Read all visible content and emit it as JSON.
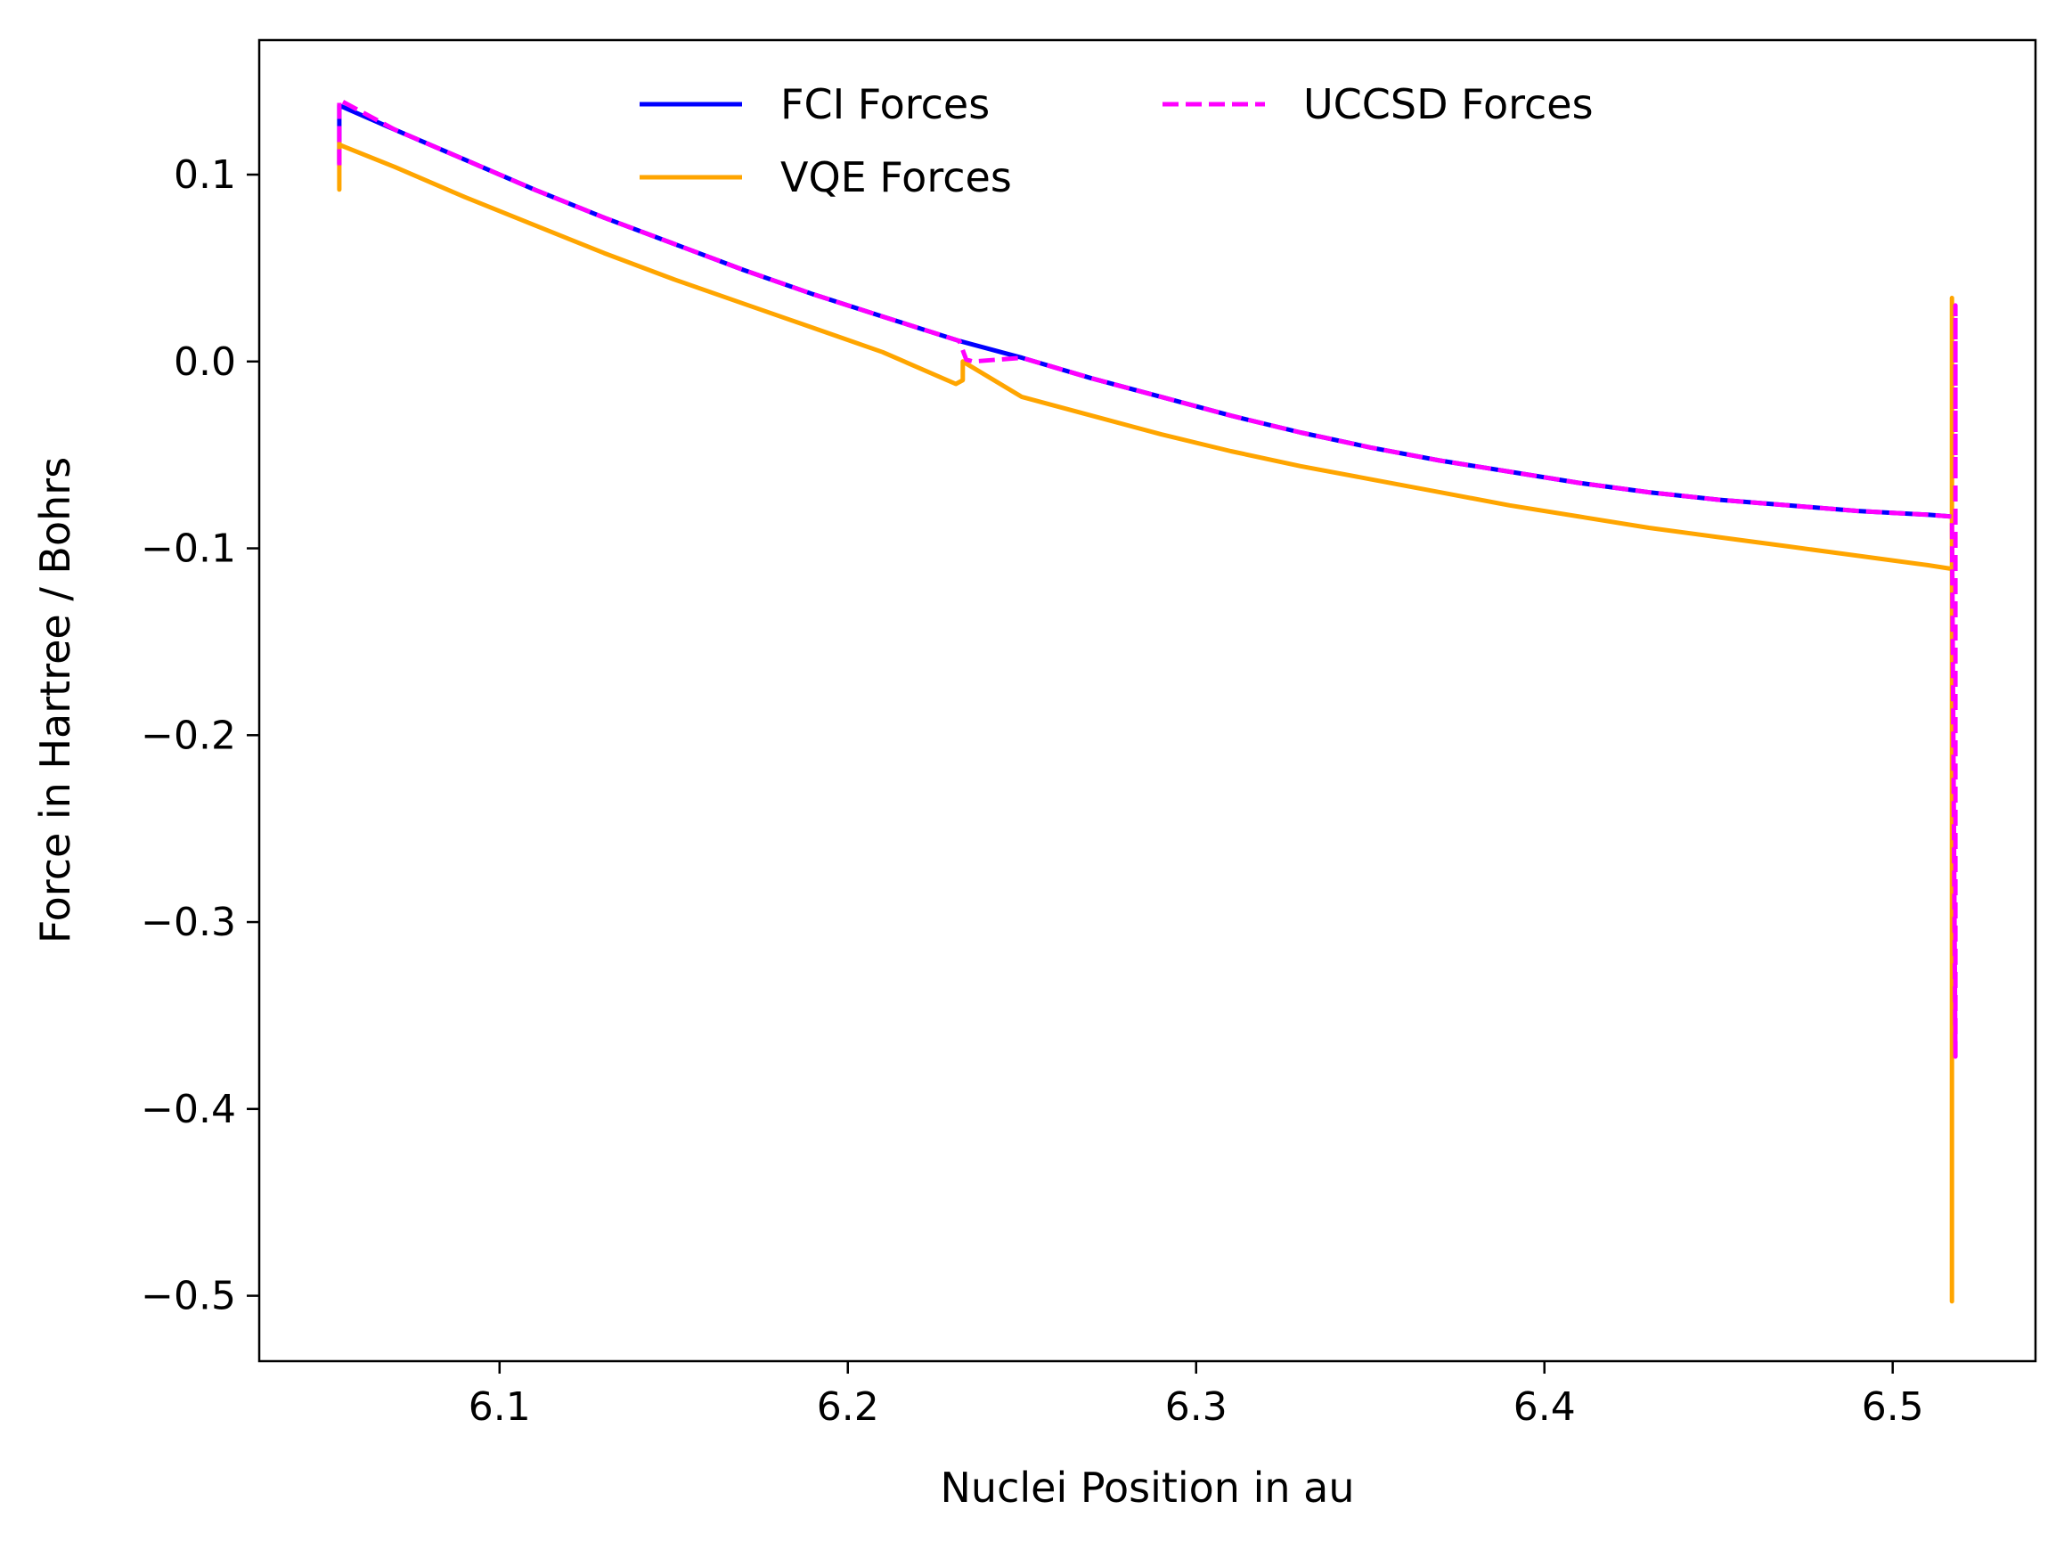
{
  "chart_data": {
    "type": "line",
    "title": "",
    "xlabel": "Nuclei Position in au",
    "ylabel": "Force in Hartree / Bohrs",
    "xlim": [
      6.031,
      6.541
    ],
    "ylim": [
      -0.535,
      0.172
    ],
    "xticks": [
      6.1,
      6.2,
      6.3,
      6.4,
      6.5
    ],
    "xtick_labels": [
      "6.1",
      "6.2",
      "6.3",
      "6.4",
      "6.5"
    ],
    "yticks": [
      0.1,
      0.0,
      -0.1,
      -0.2,
      -0.3,
      -0.4,
      -0.5
    ],
    "ytick_labels": [
      "0.1",
      "0.0",
      "−0.1",
      "−0.2",
      "−0.3",
      "−0.4",
      "−0.5"
    ],
    "grid": false,
    "legend_position": "top-center",
    "series": [
      {
        "name": "FCI Forces",
        "color": "#0000ff",
        "style": "solid",
        "x": [
          6.054,
          6.054,
          6.07,
          6.09,
          6.11,
          6.13,
          6.15,
          6.17,
          6.19,
          6.21,
          6.232,
          6.25,
          6.27,
          6.29,
          6.31,
          6.33,
          6.35,
          6.37,
          6.39,
          6.41,
          6.43,
          6.45,
          6.47,
          6.49,
          6.51,
          6.517
        ],
        "y": [
          0.106,
          0.137,
          0.124,
          0.108,
          0.092,
          0.077,
          0.063,
          0.049,
          0.036,
          0.024,
          0.011,
          0.002,
          -0.009,
          -0.019,
          -0.029,
          -0.038,
          -0.046,
          -0.053,
          -0.059,
          -0.065,
          -0.07,
          -0.074,
          -0.077,
          -0.08,
          -0.082,
          -0.083
        ]
      },
      {
        "name": "VQE Forces",
        "color": "#ffa500",
        "style": "solid",
        "x": [
          6.054,
          6.054,
          6.054,
          6.07,
          6.09,
          6.11,
          6.13,
          6.15,
          6.17,
          6.19,
          6.21,
          6.231,
          6.233,
          6.233,
          6.25,
          6.27,
          6.29,
          6.31,
          6.33,
          6.35,
          6.37,
          6.39,
          6.41,
          6.43,
          6.45,
          6.47,
          6.49,
          6.51,
          6.517,
          6.517,
          6.517,
          6.517,
          6.517
        ],
        "y": [
          0.092,
          0.118,
          0.116,
          0.104,
          0.088,
          0.073,
          0.058,
          0.044,
          0.031,
          0.018,
          0.005,
          -0.012,
          -0.01,
          0.0,
          -0.019,
          -0.029,
          -0.039,
          -0.048,
          -0.056,
          -0.063,
          -0.07,
          -0.077,
          -0.083,
          -0.089,
          -0.094,
          -0.099,
          -0.104,
          -0.109,
          -0.111,
          -0.503,
          -0.37,
          0.034,
          -0.11
        ]
      },
      {
        "name": "UCCSD Forces",
        "color": "#ff00ff",
        "style": "dashed",
        "x": [
          6.054,
          6.054,
          6.07,
          6.09,
          6.11,
          6.13,
          6.15,
          6.17,
          6.19,
          6.21,
          6.232,
          6.234,
          6.236,
          6.25,
          6.27,
          6.29,
          6.31,
          6.33,
          6.35,
          6.37,
          6.39,
          6.41,
          6.43,
          6.45,
          6.47,
          6.49,
          6.51,
          6.517,
          6.518,
          6.518,
          6.518
        ],
        "y": [
          0.105,
          0.14,
          0.124,
          0.108,
          0.092,
          0.077,
          0.063,
          0.049,
          0.036,
          0.024,
          0.011,
          0.001,
          0.0,
          0.002,
          -0.009,
          -0.019,
          -0.029,
          -0.038,
          -0.046,
          -0.053,
          -0.059,
          -0.065,
          -0.07,
          -0.074,
          -0.077,
          -0.08,
          -0.082,
          -0.083,
          -0.372,
          0.03,
          -0.06
        ]
      }
    ]
  }
}
